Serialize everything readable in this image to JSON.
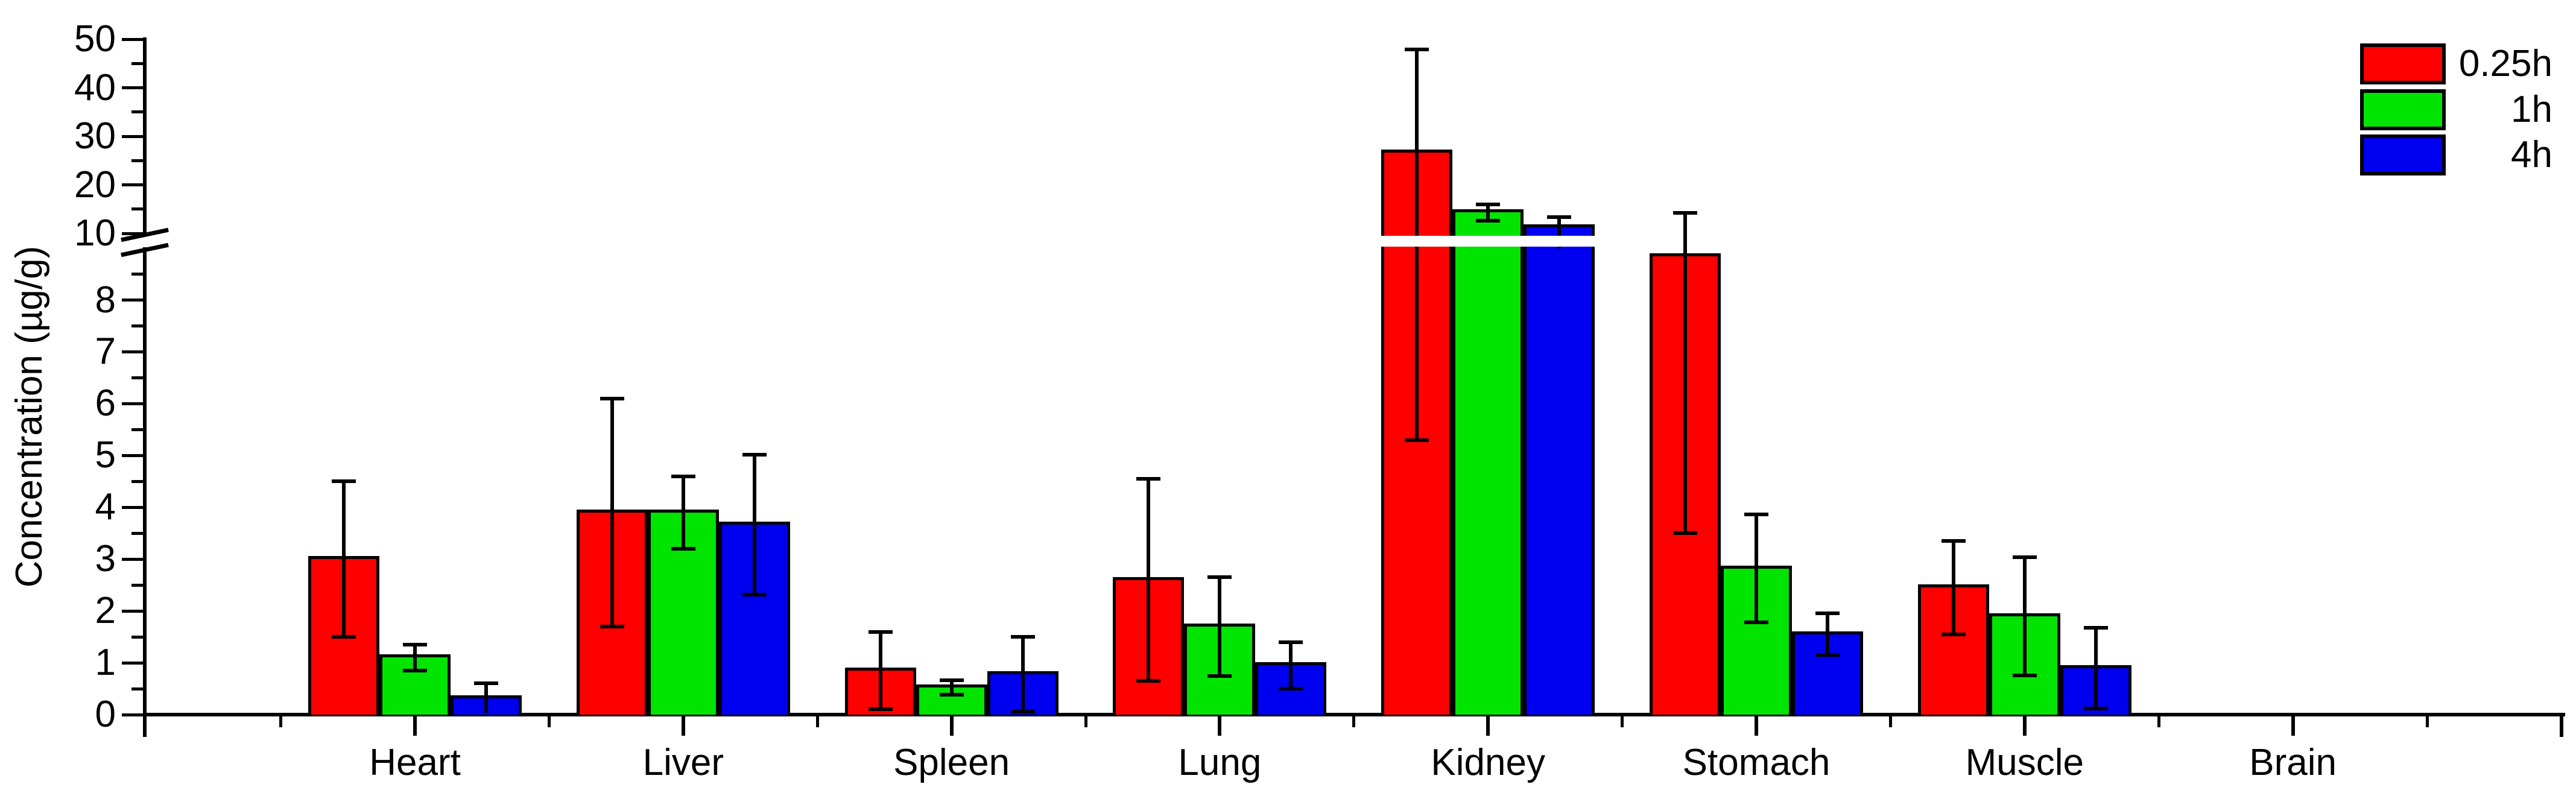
{
  "chart_data": {
    "type": "bar",
    "title": "",
    "xlabel": "",
    "ylabel": "Concentration (µg/g)",
    "categories": [
      "Heart",
      "Liver",
      "Spleen",
      "Lung",
      "Kidney",
      "Stomach",
      "Muscle",
      "Brain"
    ],
    "series": [
      {
        "name": "0.25h",
        "color": "#ff0000",
        "values": [
          3.0,
          3.9,
          0.85,
          2.6,
          26.6,
          8.85,
          2.45,
          0
        ],
        "errors": [
          1.5,
          2.2,
          0.75,
          1.95,
          21.3,
          5.35,
          0.9,
          0
        ]
      },
      {
        "name": "1h",
        "color": "#00e400",
        "values": [
          1.1,
          3.9,
          0.52,
          1.7,
          14.3,
          2.82,
          1.9,
          0
        ],
        "errors": [
          0.25,
          0.7,
          0.14,
          0.95,
          1.65,
          1.04,
          1.14,
          0
        ]
      },
      {
        "name": "4h",
        "color": "#0000f0",
        "values": [
          0.32,
          3.67,
          0.78,
          0.95,
          11.2,
          1.55,
          0.9,
          0
        ],
        "errors": [
          0.28,
          1.35,
          0.72,
          0.45,
          2.2,
          0.4,
          0.78,
          0
        ]
      }
    ],
    "y_axis": {
      "range": [
        0,
        50
      ],
      "axis_break": {
        "lower_section_max": 10,
        "upper_section_min": 10
      },
      "lower_major_ticks": [
        0,
        1,
        2,
        3,
        4,
        5,
        6,
        7,
        8
      ],
      "lower_minor_ticks": [
        0.5,
        1.5,
        2.5,
        3.5,
        4.5,
        5.5,
        6.5,
        7.5,
        8.5
      ],
      "upper_major_ticks": [
        10,
        20,
        30,
        40,
        50
      ],
      "upper_minor_ticks": [
        15,
        25,
        35,
        45
      ]
    },
    "legend": {
      "position": "top-right",
      "entries": [
        "0.25h",
        "1h",
        "4h"
      ]
    },
    "grid": false,
    "error_bars": "symmetric, plus/minus with caps"
  }
}
